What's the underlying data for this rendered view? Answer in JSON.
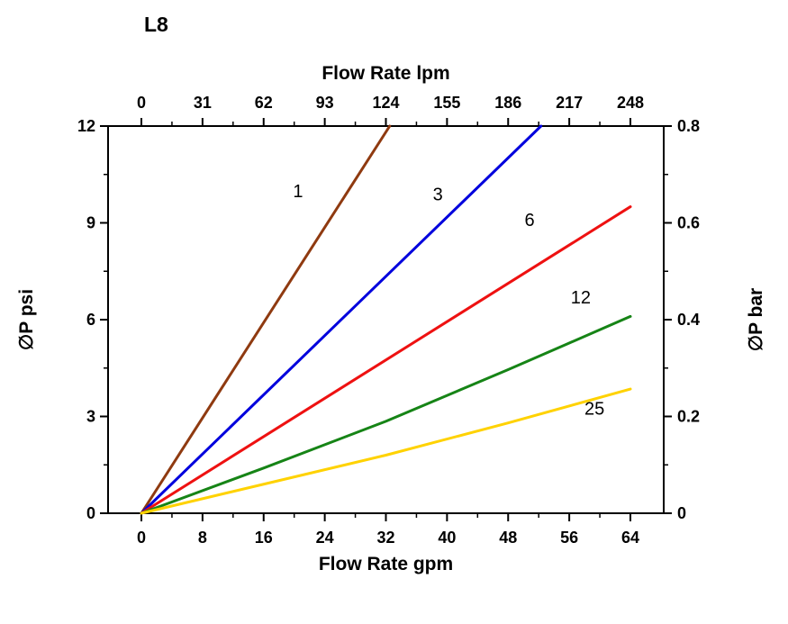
{
  "chart_data": {
    "type": "line",
    "title": "L8",
    "grid": false,
    "background": "#ffffff",
    "axes": {
      "bottom": {
        "label": "Flow Rate gpm",
        "range": [
          0,
          64
        ],
        "ticks": [
          0,
          8,
          16,
          24,
          32,
          40,
          48,
          56,
          64
        ]
      },
      "top": {
        "label": "Flow Rate lpm",
        "range": [
          0,
          248
        ],
        "ticks": [
          0,
          31,
          62,
          93,
          124,
          155,
          186,
          217,
          248
        ]
      },
      "left": {
        "label": "∅P psi",
        "range": [
          0,
          12
        ],
        "ticks": [
          0,
          3,
          6,
          9,
          12
        ]
      },
      "right": {
        "label": "∅P bar",
        "range": [
          0,
          0.8
        ],
        "ticks": [
          0,
          0.2,
          0.4,
          0.6,
          0.8
        ]
      }
    },
    "legend_position": "inline-labels",
    "series": [
      {
        "name": "1",
        "color": "#8f3a10",
        "points": [
          [
            0,
            0
          ],
          [
            32.5,
            12
          ]
        ],
        "label_pos": [
          20.5,
          9.8
        ]
      },
      {
        "name": "3",
        "color": "#0000dd",
        "points": [
          [
            0,
            0
          ],
          [
            52.3,
            12
          ]
        ],
        "label_pos": [
          38.8,
          9.7
        ]
      },
      {
        "name": "6",
        "color": "#ee1111",
        "points": [
          [
            0,
            0
          ],
          [
            64,
            9.5
          ]
        ],
        "label_pos": [
          50.8,
          8.9
        ]
      },
      {
        "name": "12",
        "color": "#168416",
        "points": [
          [
            0,
            0
          ],
          [
            16,
            1.4
          ],
          [
            32,
            2.85
          ],
          [
            48,
            4.45
          ],
          [
            64,
            6.1
          ]
        ],
        "label_pos": [
          57.5,
          6.5
        ]
      },
      {
        "name": "25",
        "color": "#ffd200",
        "points": [
          [
            0,
            0
          ],
          [
            16,
            0.9
          ],
          [
            32,
            1.8
          ],
          [
            48,
            2.8
          ],
          [
            64,
            3.85
          ]
        ],
        "label_pos": [
          59.3,
          3.05
        ]
      }
    ]
  }
}
